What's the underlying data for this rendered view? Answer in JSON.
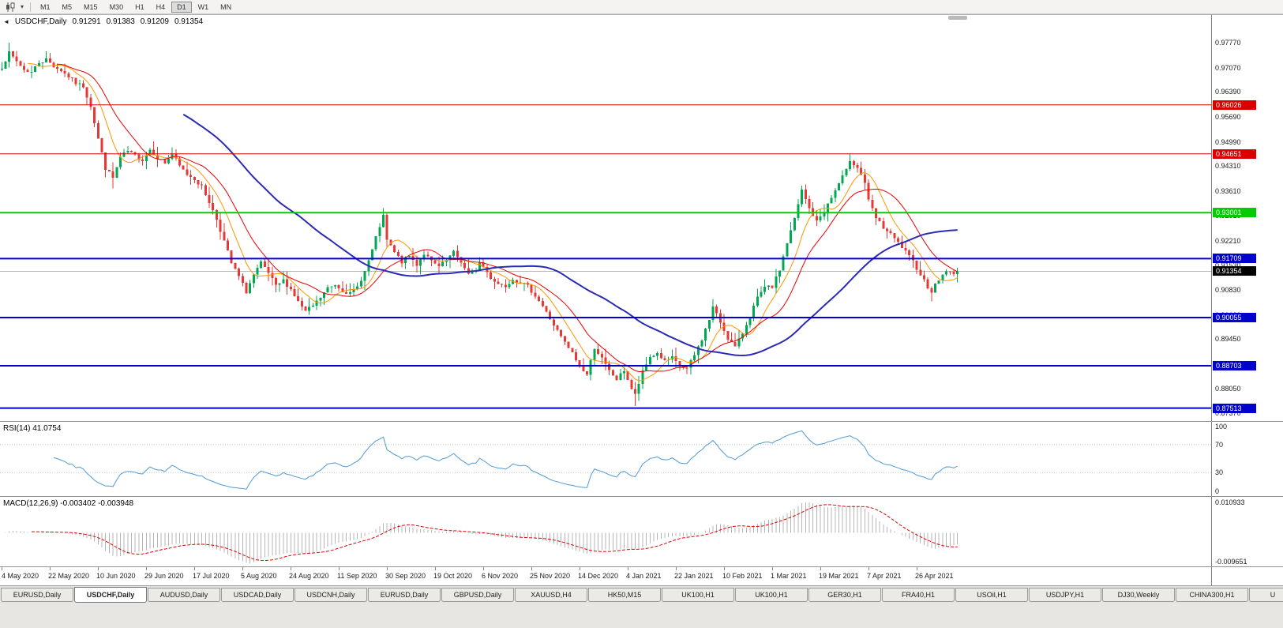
{
  "icons": {
    "collapse": "◄",
    "dropdown": "▾"
  },
  "toolbar": {
    "timeframes": [
      {
        "label": "M1",
        "active": false
      },
      {
        "label": "M5",
        "active": false
      },
      {
        "label": "M15",
        "active": false
      },
      {
        "label": "M30",
        "active": false
      },
      {
        "label": "H1",
        "active": false
      },
      {
        "label": "H4",
        "active": false
      },
      {
        "label": "D1",
        "active": true
      },
      {
        "label": "W1",
        "active": false
      },
      {
        "label": "MN",
        "active": false
      }
    ]
  },
  "main_chart": {
    "symbol_title": "USDCHF,Daily",
    "open": "0.91291",
    "high": "0.91383",
    "low": "0.91209",
    "close": "0.91354",
    "bid_price": 0.91354,
    "scale": {
      "price_top": 0.9855,
      "price_bottom": 0.8715
    },
    "price_axis_labels": [
      "0.97770",
      "0.97070",
      "0.96390",
      "0.95690",
      "0.94990",
      "0.94310",
      "0.93610",
      "0.92910",
      "0.92210",
      "0.91530",
      "0.90830",
      "0.90130",
      "0.89450",
      "0.88750",
      "0.88050",
      "0.87370"
    ],
    "hlines": [
      {
        "price": 0.96026,
        "label": "0.96026",
        "color": "#d90000",
        "stroke_width": 1
      },
      {
        "price": 0.94651,
        "label": "0.94651",
        "color": "#d90000",
        "stroke_width": 1
      },
      {
        "price": 0.93001,
        "label": "0.93001",
        "color": "#00cc00",
        "stroke_width": 2
      },
      {
        "price": 0.91709,
        "label": "0.91709",
        "color": "#0000cd",
        "stroke_width": 2
      },
      {
        "price": 0.90055,
        "label": "0.90055",
        "color": "#0000cd",
        "stroke_width": 2
      },
      {
        "price": 0.88703,
        "label": "0.88703",
        "color": "#0000cd",
        "stroke_width": 2
      },
      {
        "price": 0.87513,
        "label": "0.87513",
        "color": "#0000cd",
        "stroke_width": 2
      }
    ]
  },
  "rsi_panel": {
    "label": "RSI(14) 41.0754",
    "period": 14,
    "value": 41.0754,
    "levels": [
      70,
      30
    ],
    "axis_labels": [
      "100",
      "70",
      "30",
      "0"
    ],
    "line_color": "#4f9ad8"
  },
  "macd_panel": {
    "label": "MACD(12,26,9) -0.003402 -0.003948",
    "fast": 12,
    "slow": 26,
    "signal": 9,
    "macd_value": -0.003402,
    "signal_value": -0.003948,
    "axis_top_label": "0.010933",
    "axis_bottom_label": "-0.009651",
    "scale": {
      "top": 0.0115,
      "bottom": -0.0105
    },
    "hist_color": "#b4b4b4",
    "signal_color": "#e00000"
  },
  "date_axis": {
    "bars_per_label": 13,
    "labels": [
      "4 May 2020",
      "22 May 2020",
      "10 Jun 2020",
      "29 Jun 2020",
      "17 Jul 2020",
      "5 Aug 2020",
      "24 Aug 2020",
      "11 Sep 2020",
      "30 Sep 2020",
      "19 Oct 2020",
      "6 Nov 2020",
      "25 Nov 2020",
      "14 Dec 2020",
      "4 Jan 2021",
      "22 Jan 2021",
      "10 Feb 2021",
      "1 Mar 2021",
      "19 Mar 2021",
      "7 Apr 2021",
      "26 Apr 2021"
    ]
  },
  "tabs": {
    "items": [
      {
        "label": "EURUSD,Daily",
        "active": false
      },
      {
        "label": "USDCHF,Daily",
        "active": true
      },
      {
        "label": "AUDUSD,Daily",
        "active": false
      },
      {
        "label": "USDCAD,Daily",
        "active": false
      },
      {
        "label": "USDCNH,Daily",
        "active": false
      },
      {
        "label": "EURUSD,Daily",
        "active": false
      },
      {
        "label": "GBPUSD,Daily",
        "active": false
      },
      {
        "label": "XAUUSD,H4",
        "active": false
      },
      {
        "label": "HK50,M15",
        "active": false
      },
      {
        "label": "UK100,H1",
        "active": false
      },
      {
        "label": "UK100,H1",
        "active": false
      },
      {
        "label": "GER30,H1",
        "active": false
      },
      {
        "label": "FRA40,H1",
        "active": false
      },
      {
        "label": "USOil,H1",
        "active": false
      },
      {
        "label": "USDJPY,H1",
        "active": false
      },
      {
        "label": "DJ30,Weekly",
        "active": false
      },
      {
        "label": "CHINA300,H1",
        "active": false
      },
      {
        "label": "U",
        "active": false,
        "partial": true
      }
    ]
  },
  "chart_data": {
    "type": "candlestick",
    "symbol": "USDCHF",
    "timeframe": "Daily",
    "title": "USDCHF,Daily",
    "x_range": [
      "4 May 2020",
      "26 Apr 2021"
    ],
    "y_range": [
      0.8715,
      0.9855
    ],
    "ohlc_last": {
      "open": 0.91291,
      "high": 0.91383,
      "low": 0.91209,
      "close": 0.91354
    },
    "horizontal_levels": [
      0.96026,
      0.94651,
      0.93001,
      0.91709,
      0.90055,
      0.88703,
      0.87513
    ],
    "indicators": [
      "RSI(14)=41.0754",
      "MACD(12,26,9)=-0.003402/-0.003948"
    ],
    "right_shift_bars": 68,
    "noise_seed": 7,
    "noise_amp": 0.0011,
    "wick_amp": 0.0026,
    "up_color": "#00a94f",
    "down_color": "#e53935",
    "moving_averages": [
      {
        "period": 8,
        "color": "#ff9500",
        "width": 1
      },
      {
        "period": 16,
        "color": "#e80000",
        "width": 1
      },
      {
        "period": 50,
        "color": "#2a2ab4",
        "width": 2
      }
    ],
    "price_anchors": [
      [
        0,
        0.971
      ],
      [
        2,
        0.9748
      ],
      [
        4,
        0.9725
      ],
      [
        6,
        0.9701
      ],
      [
        8,
        0.9695
      ],
      [
        10,
        0.9722
      ],
      [
        12,
        0.973
      ],
      [
        14,
        0.9712
      ],
      [
        16,
        0.97
      ],
      [
        18,
        0.9682
      ],
      [
        20,
        0.9664
      ],
      [
        22,
        0.9655
      ],
      [
        24,
        0.96
      ],
      [
        26,
        0.9508
      ],
      [
        28,
        0.9425
      ],
      [
        30,
        0.9398
      ],
      [
        32,
        0.9455
      ],
      [
        34,
        0.9472
      ],
      [
        36,
        0.946
      ],
      [
        38,
        0.9448
      ],
      [
        40,
        0.9478
      ],
      [
        42,
        0.9455
      ],
      [
        44,
        0.944
      ],
      [
        46,
        0.9465
      ],
      [
        48,
        0.943
      ],
      [
        50,
        0.9408
      ],
      [
        52,
        0.9395
      ],
      [
        54,
        0.9372
      ],
      [
        56,
        0.933
      ],
      [
        58,
        0.9282
      ],
      [
        60,
        0.922
      ],
      [
        62,
        0.9158
      ],
      [
        64,
        0.912
      ],
      [
        66,
        0.9078
      ],
      [
        68,
        0.9125
      ],
      [
        70,
        0.9158
      ],
      [
        72,
        0.913
      ],
      [
        74,
        0.9092
      ],
      [
        76,
        0.911
      ],
      [
        78,
        0.9085
      ],
      [
        80,
        0.905
      ],
      [
        82,
        0.9022
      ],
      [
        84,
        0.9038
      ],
      [
        86,
        0.9062
      ],
      [
        88,
        0.9088
      ],
      [
        90,
        0.9098
      ],
      [
        92,
        0.9082
      ],
      [
        94,
        0.9072
      ],
      [
        96,
        0.9092
      ],
      [
        98,
        0.9135
      ],
      [
        100,
        0.9195
      ],
      [
        102,
        0.9262
      ],
      [
        103,
        0.9288
      ],
      [
        104,
        0.9222
      ],
      [
        106,
        0.9188
      ],
      [
        108,
        0.9162
      ],
      [
        110,
        0.9178
      ],
      [
        112,
        0.9155
      ],
      [
        114,
        0.9185
      ],
      [
        116,
        0.9162
      ],
      [
        118,
        0.9148
      ],
      [
        120,
        0.9165
      ],
      [
        122,
        0.9188
      ],
      [
        124,
        0.9162
      ],
      [
        126,
        0.9125
      ],
      [
        128,
        0.914
      ],
      [
        129,
        0.916
      ],
      [
        130,
        0.9148
      ],
      [
        132,
        0.9118
      ],
      [
        134,
        0.91
      ],
      [
        136,
        0.9095
      ],
      [
        138,
        0.9115
      ],
      [
        140,
        0.9105
      ],
      [
        142,
        0.9092
      ],
      [
        144,
        0.9068
      ],
      [
        146,
        0.9038
      ],
      [
        148,
        0.9002
      ],
      [
        150,
        0.8968
      ],
      [
        152,
        0.8935
      ],
      [
        154,
        0.8905
      ],
      [
        156,
        0.8868
      ],
      [
        158,
        0.8845
      ],
      [
        160,
        0.8922
      ],
      [
        162,
        0.889
      ],
      [
        164,
        0.8855
      ],
      [
        166,
        0.8832
      ],
      [
        168,
        0.8858
      ],
      [
        170,
        0.8805
      ],
      [
        171,
        0.8788
      ],
      [
        173,
        0.8852
      ],
      [
        175,
        0.8895
      ],
      [
        177,
        0.8905
      ],
      [
        179,
        0.8882
      ],
      [
        181,
        0.8892
      ],
      [
        183,
        0.8868
      ],
      [
        185,
        0.8862
      ],
      [
        187,
        0.89
      ],
      [
        189,
        0.8945
      ],
      [
        191,
        0.9
      ],
      [
        192,
        0.9035
      ],
      [
        194,
        0.8992
      ],
      [
        196,
        0.8948
      ],
      [
        198,
        0.8922
      ],
      [
        200,
        0.8962
      ],
      [
        202,
        0.9012
      ],
      [
        204,
        0.906
      ],
      [
        206,
        0.9088
      ],
      [
        208,
        0.9092
      ],
      [
        210,
        0.914
      ],
      [
        212,
        0.9215
      ],
      [
        214,
        0.9282
      ],
      [
        216,
        0.9362
      ],
      [
        218,
        0.9312
      ],
      [
        220,
        0.9275
      ],
      [
        222,
        0.9305
      ],
      [
        224,
        0.9342
      ],
      [
        226,
        0.9382
      ],
      [
        228,
        0.9418
      ],
      [
        229,
        0.9448
      ],
      [
        231,
        0.9428
      ],
      [
        233,
        0.9385
      ],
      [
        234,
        0.9332
      ],
      [
        236,
        0.9285
      ],
      [
        238,
        0.9258
      ],
      [
        240,
        0.9238
      ],
      [
        242,
        0.9215
      ],
      [
        244,
        0.919
      ],
      [
        246,
        0.9162
      ],
      [
        248,
        0.9128
      ],
      [
        250,
        0.9092
      ],
      [
        251,
        0.908
      ],
      [
        253,
        0.9112
      ],
      [
        255,
        0.9138
      ],
      [
        257,
        0.9125
      ],
      [
        258,
        0.91354
      ]
    ],
    "wick_overrides": [
      [
        2,
        "high",
        0.9777
      ],
      [
        30,
        "low",
        0.9368
      ],
      [
        103,
        "high",
        0.9297
      ],
      [
        171,
        "low",
        0.8757
      ],
      [
        229,
        "high",
        0.9465
      ],
      [
        251,
        "low",
        0.9073
      ]
    ]
  }
}
